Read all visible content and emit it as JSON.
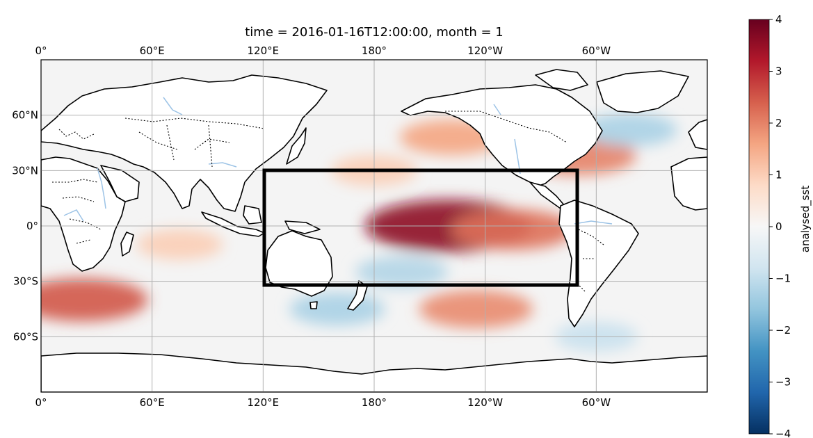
{
  "map": {
    "title": "time = 2016-01-16T12:00:00, month = 1",
    "projection": "PlateCarree, central longitude 180",
    "extent_lon": [
      0,
      360
    ],
    "extent_lat": [
      -90,
      90
    ],
    "lon_ticks": [
      {
        "lon": 0,
        "label": "0°"
      },
      {
        "lon": 60,
        "label": "60°E"
      },
      {
        "lon": 120,
        "label": "120°E"
      },
      {
        "lon": 180,
        "label": "180°"
      },
      {
        "lon": 240,
        "label": "120°W"
      },
      {
        "lon": 300,
        "label": "60°W"
      }
    ],
    "lat_ticks": [
      {
        "lat": 60,
        "label": "60°N"
      },
      {
        "lat": 30,
        "label": "30°N"
      },
      {
        "lat": 0,
        "label": "0°"
      },
      {
        "lat": -30,
        "label": "30°S"
      },
      {
        "lat": -60,
        "label": "60°S"
      }
    ],
    "grid": true,
    "box": {
      "lon_min": 120,
      "lon_max": 290,
      "lat_min": -32,
      "lat_max": 30
    },
    "colors": {
      "ocean_bg": "#f4f4f4",
      "land": "#ffffff",
      "coast": "#000000",
      "rivers": "#9cc3e6",
      "grid": "#b0b0b0",
      "box": "#000000"
    },
    "anomalies": [
      {
        "name": "el-nino-core",
        "lon": 220,
        "lat": 0,
        "value": 3.6
      },
      {
        "name": "el-nino-east",
        "lon": 255,
        "lat": -2,
        "value": 2.2
      },
      {
        "name": "nw-pacific-warm",
        "lon": 180,
        "lat": 30,
        "value": 1.0
      },
      {
        "name": "ne-pacific-warm",
        "lon": 222,
        "lat": 48,
        "value": 1.6
      },
      {
        "name": "gulf-stream-warm",
        "lon": 290,
        "lat": 38,
        "value": 2.0
      },
      {
        "name": "north-atlantic-cold",
        "lon": 318,
        "lat": 52,
        "value": -1.3
      },
      {
        "name": "sw-pacific-cold",
        "lon": 195,
        "lat": -25,
        "value": -1.2
      },
      {
        "name": "south-pacific-warm",
        "lon": 235,
        "lat": -45,
        "value": 1.9
      },
      {
        "name": "tasman-cold",
        "lon": 160,
        "lat": -45,
        "value": -1.3
      },
      {
        "name": "indian-ocean-warm",
        "lon": 75,
        "lat": -10,
        "value": 1.0
      },
      {
        "name": "agulhas-warm",
        "lon": 22,
        "lat": -40,
        "value": 2.5
      },
      {
        "name": "southern-ocean-cold",
        "lon": 300,
        "lat": -60,
        "value": -0.9
      }
    ]
  },
  "colorbar": {
    "label": "analysed_sst",
    "vmin": -4,
    "vmax": 4,
    "ticks": [
      {
        "value": 4,
        "label": "4"
      },
      {
        "value": 3,
        "label": "3"
      },
      {
        "value": 2,
        "label": "2"
      },
      {
        "value": 1,
        "label": "1"
      },
      {
        "value": 0,
        "label": "0"
      },
      {
        "value": -1,
        "label": "−1"
      },
      {
        "value": -2,
        "label": "−2"
      },
      {
        "value": -3,
        "label": "−3"
      },
      {
        "value": -4,
        "label": "−4"
      }
    ],
    "stops": [
      "#053061",
      "#2166ac",
      "#4393c3",
      "#92c5de",
      "#d1e5f0",
      "#f7f7f7",
      "#fddbc7",
      "#f4a582",
      "#d6604d",
      "#b2182b",
      "#67001f"
    ]
  }
}
